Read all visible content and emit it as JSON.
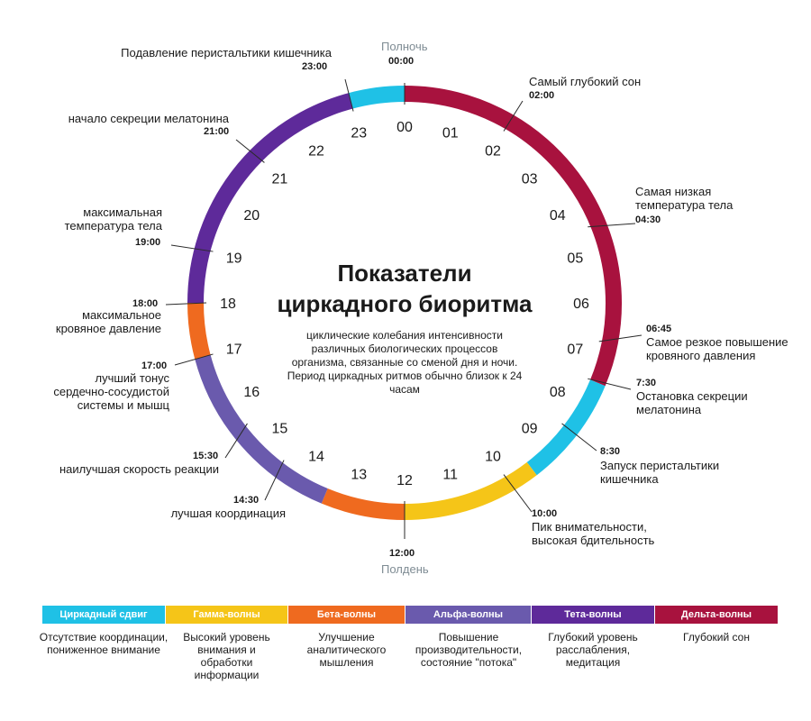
{
  "title_line1": "Показатели",
  "title_line2": "циркадного биоритма",
  "description": "циклические колебания интенсивности различных биологических процессов организма, связанные со сменой дня и ночи. Период циркадных ритмов обычно близок к 24 часам",
  "midnight": {
    "label": "Полночь",
    "time": "00:00"
  },
  "noon": {
    "label": "Полдень",
    "time": "12:00"
  },
  "hours": [
    "00",
    "01",
    "02",
    "03",
    "04",
    "05",
    "06",
    "07",
    "08",
    "09",
    "10",
    "11",
    "12",
    "13",
    "14",
    "15",
    "16",
    "17",
    "18",
    "19",
    "20",
    "21",
    "22",
    "23"
  ],
  "colors": {
    "delta": "#a8123e",
    "cyan": "#1fc1e6",
    "gamma": "#f5c518",
    "beta": "#ef6a1f",
    "alpha": "#6a5aad",
    "theta": "#5e2a9a"
  },
  "events": {
    "e2300": {
      "time": "23:00",
      "text": "Подавление перистальтики кишечника"
    },
    "e0200": {
      "time": "02:00",
      "text": "Самый глубокий сон"
    },
    "e2100": {
      "time": "21:00",
      "text": "начало секреции мелатонина"
    },
    "e0430": {
      "time": "04:30",
      "text1": "Самая низкая",
      "text2": "температура тела"
    },
    "e1900": {
      "time": "19:00",
      "text1": "максимальная",
      "text2": "температура тела"
    },
    "e1800": {
      "time": "18:00",
      "text1": "максимальное",
      "text2": "кровяное давление"
    },
    "e0645": {
      "time": "06:45",
      "text1": "Самое резкое повышение",
      "text2": "кровяного давления"
    },
    "e1700": {
      "time": "17:00",
      "text1": "лучший тонус",
      "text2": "сердечно-сосудистой",
      "text3": "системы и мышц"
    },
    "e0730": {
      "time": "7:30",
      "text1": "Остановка секреции",
      "text2": "мелатонина"
    },
    "e1530": {
      "time": "15:30",
      "text": "наилучшая скорость реакции"
    },
    "e0830": {
      "time": "8:30",
      "text1": "Запуск перистальтики",
      "text2": "кишечника"
    },
    "e1430": {
      "time": "14:30",
      "text": "лучшая координация"
    },
    "e1000": {
      "time": "10:00",
      "text1": "Пик внимательности,",
      "text2": "высокая бдительность"
    }
  },
  "legend": [
    {
      "name": "Циркадный сдвиг",
      "color": "#1fc1e6",
      "desc1": "Отсутствие координации,",
      "desc2": "пониженное внимание",
      "desc3": ""
    },
    {
      "name": "Гамма-волны",
      "color": "#f5c518",
      "desc1": "Высокий уровень",
      "desc2": "внимания и",
      "desc3": "обработки",
      "desc4": "информации"
    },
    {
      "name": "Бета-волны",
      "color": "#ef6a1f",
      "desc1": "Улучшение",
      "desc2": "аналитического",
      "desc3": "мышления"
    },
    {
      "name": "Альфа-волны",
      "color": "#6a5aad",
      "desc1": "Повышение",
      "desc2": "производительности,",
      "desc3": "состояние \"потока\""
    },
    {
      "name": "Тета-волны",
      "color": "#5e2a9a",
      "desc1": "Глубокий уровень",
      "desc2": "расслабления,",
      "desc3": "медитация"
    },
    {
      "name": "Дельта-волны",
      "color": "#a8123e",
      "desc1": "Глубокий сон",
      "desc2": "",
      "desc3": ""
    }
  ]
}
